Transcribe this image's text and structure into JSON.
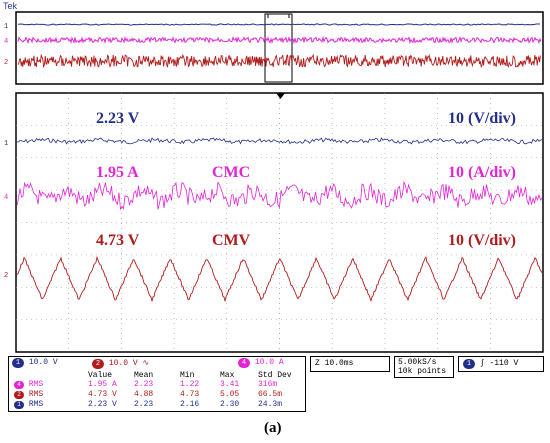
{
  "brand": "Tek",
  "colors": {
    "ch1": "#232e8a",
    "ch4": "#e225d6",
    "ch2": "#b01c1c",
    "grid": "#9a9a9a"
  },
  "channels": [
    {
      "id": "1",
      "color": "#232e8a"
    },
    {
      "id": "4",
      "color": "#e225d6"
    },
    {
      "id": "2",
      "color": "#b01c1c"
    }
  ],
  "annotations": {
    "ch1_value": "2.23 V",
    "ch1_scale": "10 (V/div)",
    "ch4_value": "1.95 A",
    "ch4_name": "CMC",
    "ch4_scale": "10 (A/div)",
    "ch2_value": "4.73 V",
    "ch2_name": "CMV",
    "ch2_scale": "10 (V/div)"
  },
  "settings": {
    "ch1_badge": "1",
    "ch1_scale": "10.0 V",
    "ch2_badge": "2",
    "ch2_scale": "10.0 V",
    "ch2_bw": "∿",
    "ch4_badge": "4",
    "ch4_scale": "10.0 A",
    "timebase": "Z 10.0ms",
    "sample_rate": "5.00kS/s",
    "record_length": "10k points",
    "trigger_badge": "1",
    "trigger_slope": "∫",
    "trigger_level": "-110 V"
  },
  "stats": {
    "headers": [
      "Value",
      "Mean",
      "Min",
      "Max",
      "Std Dev"
    ],
    "rows": [
      {
        "badge": "4",
        "label": "RMS",
        "values": [
          "1.95 A",
          "2.23",
          "1.22",
          "3.41",
          "316m"
        ]
      },
      {
        "badge": "2",
        "label": "RMS",
        "values": [
          "4.73 V",
          "4.88",
          "4.73",
          "5.05",
          "66.5m"
        ]
      },
      {
        "badge": "1",
        "label": "RMS",
        "values": [
          "2.23 V",
          "2.23",
          "2.16",
          "2.30",
          "24.3m"
        ]
      }
    ]
  },
  "caption": "(a)"
}
